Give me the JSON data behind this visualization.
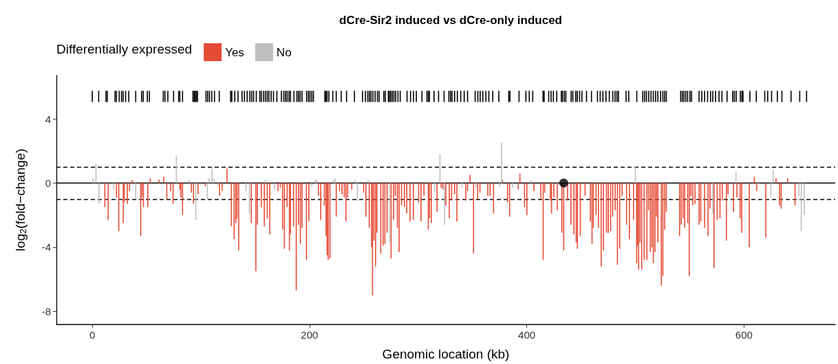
{
  "chart_data": {
    "type": "bar",
    "title": "dCre-Sir2 induced vs dCre-only induced",
    "xlabel": "Genomic location (kb)",
    "ylabel": "log$_{2}$(fold−change)",
    "legend_title": "Differentially expressed",
    "legend": "top left",
    "grid": false,
    "xlim": [
      -33,
      684
    ],
    "xticks": [
      0,
      200,
      400,
      600
    ],
    "ylim": [
      -8.8,
      6.7
    ],
    "yticks": [
      -8,
      -4,
      0,
      4
    ],
    "ref_lines": [
      {
        "axis": "y",
        "value": 0,
        "color": "#000000",
        "line_style": "solid"
      },
      {
        "axis": "y",
        "value": 1,
        "color": "#000000",
        "line_style": "dashed"
      },
      {
        "axis": "y",
        "value": -1,
        "color": "#000000",
        "line_style": "dashed"
      }
    ],
    "series": [
      {
        "name": "Yes",
        "color": "#e64b35",
        "x": [
          11.6,
          14.7,
          22.3,
          24.4,
          28.6,
          29.4,
          32.2,
          34.3,
          36.8,
          44.6,
          45.8,
          47.1,
          51.1,
          53.4,
          61.6,
          65.8,
          68.6,
          72.2,
          74.4,
          80.6,
          81.6,
          83.1,
          91.3,
          93.2,
          97.4,
          104.1,
          117.2,
          119.5,
          124.1,
          128.1,
          130.6,
          132.1,
          133.2,
          134.8,
          146.4,
          150.6,
          152,
          155.6,
          158.4,
          161.1,
          163.4,
          171,
          173.1,
          175.2,
          176.9,
          179.4,
          181.5,
          182.5,
          185.3,
          187.8,
          189.9,
          191.6,
          193.1,
          197.2,
          199.4,
          208.2,
          210.3,
          213.7,
          215.2,
          216.2,
          217.2,
          218.8,
          224.6,
          227.7,
          229.9,
          232,
          233.5,
          235.1,
          238.9,
          249.8,
          251.9,
          255,
          257.2,
          258,
          259.3,
          260.8,
          262,
          265.6,
          267.7,
          269.4,
          271.4,
          275.1,
          277.3,
          279,
          280.9,
          282.5,
          284.7,
          287.4,
          289.5,
          292.5,
          295.6,
          300.5,
          302.6,
          305.4,
          309.4,
          310.4,
          312.1,
          317.4,
          321.2,
          322.7,
          325.5,
          328.7,
          330.8,
          333.6,
          335.7,
          343.8,
          345.5,
          347.8,
          351,
          354.8,
          356.9,
          364.1,
          366.2,
          369.4,
          377.6,
          382.3,
          384.2,
          392.2,
          393.7,
          398,
          400.1,
          406.6,
          412.9,
          415.1,
          416.5,
          421.8,
          422.8,
          424.9,
          428.1,
          432.3,
          434,
          437.5,
          440.7,
          443.4,
          445.5,
          446.6,
          449.3,
          453.7,
          458.6,
          460.1,
          461.3,
          463.8,
          466,
          468.5,
          470.6,
          473.4,
          475.1,
          477.2,
          479.1,
          481.4,
          483.5,
          485.6,
          487.7,
          491.9,
          494.5,
          498.3,
          501.2,
          502,
          503,
          504.3,
          505.8,
          508.1,
          510.6,
          512.1,
          513.8,
          515.2,
          516.5,
          518,
          519.4,
          520.7,
          523.9,
          525.3,
          527,
          528.5,
          540.7,
          542.2,
          543.9,
          545.4,
          548.1,
          549.6,
          551.1,
          552.8,
          554.9,
          558.7,
          560.2,
          563.7,
          566.9,
          568.6,
          572.4,
          575.3,
          577.9,
          580,
          583.8,
          585.3,
          590.3,
          593.5,
          596.4,
          597.9,
          604.8,
          609.5,
          611.6,
          620,
          629.5,
          632.7,
          634.2,
          640.1,
          647
        ],
        "values": [
          -1.5,
          -2.3,
          -0.9,
          -3.0,
          -2.5,
          -1.2,
          -1.3,
          -0.5,
          0.2,
          -3.3,
          -0.9,
          -1.5,
          -1.5,
          0.3,
          0.2,
          0.4,
          -1.0,
          -0.5,
          -1.3,
          -0.4,
          -0.9,
          -2.0,
          -0.6,
          -1.3,
          -0.7,
          -0.2,
          -0.8,
          -0.5,
          0.9,
          -2.7,
          -3.5,
          -2.5,
          -2.2,
          -4.2,
          -2.5,
          -5.5,
          -2.6,
          -1.5,
          -2.7,
          -2.2,
          -3.2,
          -0.5,
          -0.3,
          -2.9,
          -4.1,
          -1.5,
          -4.2,
          -3.2,
          -2.7,
          -6.7,
          -2.6,
          -3.8,
          -2.8,
          -4.8,
          -2.4,
          -0.8,
          -2.3,
          -1.4,
          -3.3,
          -4.5,
          -4.8,
          -4.7,
          -2.1,
          -0.5,
          -0.7,
          -0.9,
          -2.4,
          -0.9,
          -0.4,
          -0.6,
          -2.1,
          -2.8,
          -4.0,
          -7.0,
          -3.6,
          -5.2,
          -3.1,
          -4.4,
          -3.9,
          -3.8,
          -3.1,
          -4.7,
          -2.3,
          -0.8,
          -2.8,
          -4.3,
          -1.4,
          -1.5,
          -1.9,
          -2.4,
          -2.3,
          -1.2,
          -2.4,
          -0.8,
          -2.9,
          -2.2,
          -2.5,
          -1.8,
          -0.3,
          -0.4,
          -1.4,
          -2.2,
          -1.1,
          -0.7,
          -2.4,
          -1.1,
          -0.5,
          0.5,
          -4.4,
          -1.0,
          -0.6,
          -0.8,
          -0.8,
          -1.9,
          0.2,
          -1.2,
          -2.1,
          -0.4,
          0.6,
          -1.5,
          -2.0,
          -0.5,
          -1.0,
          -4.8,
          -0.6,
          -1.1,
          -1.9,
          -0.9,
          -1.7,
          -3.1,
          -4.2,
          -1.1,
          -2.6,
          -3.2,
          -3.7,
          -4.1,
          -3.3,
          -0.8,
          -2.4,
          -3.8,
          -2.8,
          -2.0,
          -2.8,
          -5.2,
          -4.2,
          -3.1,
          -3.1,
          -3.0,
          -2.1,
          -1.7,
          -5.1,
          -4.1,
          -0.8,
          -2.6,
          -3.5,
          -2.3,
          -5.0,
          -3.9,
          -5.4,
          -3.7,
          -5.4,
          -4.8,
          -4.8,
          -1.7,
          -4.3,
          -4.0,
          -5.0,
          -4.3,
          -2.1,
          -3.7,
          -6.4,
          -5.8,
          -2.9,
          -1.8,
          -3.3,
          -2.6,
          -2.2,
          -2.8,
          -2.5,
          -5.8,
          -0.8,
          -1.4,
          -1.3,
          -2.6,
          -2.4,
          -2.8,
          -3.3,
          -1.6,
          -5.3,
          -2.3,
          -2.2,
          -1.1,
          -3.6,
          -0.7,
          -1.8,
          -0.9,
          -2.2,
          -3.1,
          -4.0,
          0.4,
          -0.5,
          -3.4,
          0.3,
          -1.4,
          -1.6,
          0.3,
          -1.4
        ]
      },
      {
        "name": "No",
        "color": "#bebebe",
        "x": [
          0.6,
          3.4,
          6.3,
          19.6,
          40,
          77.4,
          89.4,
          95.3,
          106,
          107.5,
          110.2,
          112.1,
          115.9,
          141.5,
          144.7,
          159.4,
          167.8,
          202.1,
          205.3,
          206.7,
          222,
          223.5,
          242.1,
          244.1,
          254,
          274.1,
          315.3,
          320.1,
          324.3,
          340.3,
          353.1,
          374.9,
          376.8,
          386.9,
          403.8,
          500,
          571.1,
          592.6,
          613.3,
          624.7,
          626.8,
          650.6,
          652.7,
          655.4
        ],
        "values": [
          0.3,
          1.2,
          -1.3,
          -0.4,
          -1.0,
          1.7,
          0.2,
          -2.3,
          -1.0,
          0.3,
          0.9,
          0.3,
          -0.2,
          -0.5,
          -1.9,
          0.2,
          -0.4,
          -0.2,
          0.2,
          0.2,
          0.2,
          0.3,
          0.2,
          -1.1,
          0.2,
          -3.7,
          -0.6,
          1.8,
          -2.6,
          -0.3,
          -0.3,
          -0.2,
          2.5,
          -0.3,
          0.2,
          1.0,
          -1.9,
          0.7,
          0.1,
          -0.9,
          0.8,
          -0.8,
          -3.0,
          -2.0
        ]
      },
      {
        "color": "#000000",
        "x": [
          0,
          5.9,
          12.6,
          13.9,
          21,
          22.3,
          24.8,
          26.9,
          28.4,
          30.7,
          33.6,
          40,
          45.4,
          46.9,
          50.7,
          52.6,
          65.4,
          66.9,
          69.6,
          74.9,
          79.5,
          80.6,
          83.1,
          92.7,
          93.8,
          94.8,
          95.9,
          96.9,
          104.7,
          106.2,
          107.9,
          110,
          112.5,
          116.9,
          127.4,
          128.5,
          131.2,
          134.2,
          137.9,
          140.1,
          142.6,
          145.1,
          146.8,
          148.5,
          151,
          154.2,
          155.6,
          157.7,
          159.4,
          161.1,
          162.6,
          164.7,
          166.8,
          170,
          174.1,
          176.3,
          177.9,
          179.4,
          181.1,
          182.5,
          185.7,
          188.4,
          189.9,
          191.4,
          193.1,
          197.3,
          199,
          200.4,
          202.1,
          203.6,
          214.1,
          215.1,
          216.2,
          217.8,
          221.4,
          224.6,
          229.2,
          234.1,
          241.4,
          248.8,
          251.5,
          253.6,
          255.1,
          256.6,
          258.3,
          260.4,
          262.5,
          264.1,
          268.4,
          269.8,
          272.6,
          273.4,
          274.7,
          276.2,
          277.7,
          279.3,
          281.4,
          283.5,
          289.8,
          293,
          295.7,
          298.3,
          303.5,
          308.1,
          309.4,
          310.4,
          314.6,
          318.8,
          323.9,
          328.3,
          329.8,
          331.2,
          333.6,
          336.1,
          339.2,
          342.4,
          345.5,
          352.5,
          355,
          357.1,
          359.6,
          362.4,
          365.1,
          368.7,
          374.3,
          383.4,
          384.5,
          392.9,
          399.2,
          402.3,
          405.5,
          415,
          416,
          420.2,
          422.4,
          424.5,
          427.6,
          431.8,
          432.9,
          434.6,
          436,
          440.9,
          442.4,
          445.1,
          446.6,
          448.7,
          450.8,
          455,
          459.6,
          465.1,
          467.6,
          470.1,
          472.9,
          476,
          479.2,
          481.3,
          483,
          484.4,
          491.4,
          493.9,
          501.3,
          506.8,
          508.5,
          510.2,
          512.3,
          514.4,
          516.5,
          518.6,
          520.7,
          523.2,
          525.3,
          527,
          528.5,
          541.7,
          543.2,
          544.7,
          546.4,
          548.1,
          550.2,
          551.7,
          558.6,
          561.2,
          563.7,
          566.5,
          569.2,
          571.3,
          573.8,
          577,
          579.7,
          584.4,
          589.6,
          591.1,
          592.8,
          596.6,
          598.1,
          599.1,
          605.4,
          611.3,
          619.1,
          621.8,
          625.4,
          630.7,
          634.9,
          643.3,
          651.3,
          657.6
        ],
        "base": [
          5.05,
          5.05,
          5.05,
          5.05,
          5.05,
          5.05,
          5.05,
          5.05,
          5.05,
          5.05,
          5.05,
          5.05,
          5.05,
          5.05,
          5.05,
          5.05,
          5.05,
          5.05,
          5.05,
          5.05,
          5.05,
          5.05,
          5.05,
          5.05,
          5.05,
          5.05,
          5.05,
          5.05,
          5.05,
          5.05,
          5.05,
          5.05,
          5.05,
          5.05,
          5.05,
          5.05,
          5.05,
          5.05,
          5.05,
          5.05,
          5.05,
          5.05,
          5.05,
          5.05,
          5.05,
          5.05,
          5.05,
          5.05,
          5.05,
          5.05,
          5.05,
          5.05,
          5.05,
          5.05,
          5.05,
          5.05,
          5.05,
          5.05,
          5.05,
          5.05,
          5.05,
          5.05,
          5.05,
          5.05,
          5.05,
          5.05,
          5.05,
          5.05,
          5.05,
          5.05,
          5.05,
          5.05,
          5.05,
          5.05,
          5.05,
          5.05,
          5.05,
          5.05,
          5.05,
          5.05,
          5.05,
          5.05,
          5.05,
          5.05,
          5.05,
          5.05,
          5.05,
          5.05,
          5.05,
          5.05,
          5.05,
          5.05,
          5.05,
          5.05,
          5.05,
          5.05,
          5.05,
          5.05,
          5.05,
          5.05,
          5.05,
          5.05,
          5.05,
          5.05,
          5.05,
          5.05,
          5.05,
          5.05,
          5.05,
          5.05,
          5.05,
          5.05,
          5.05,
          5.05,
          5.05,
          5.05,
          5.05,
          5.05,
          5.05,
          5.05,
          5.05,
          5.05,
          5.05,
          5.05,
          5.05,
          5.05,
          5.05,
          5.05,
          5.05,
          5.05,
          5.05,
          5.05,
          5.05,
          5.05,
          5.05,
          5.05,
          5.05,
          5.05,
          5.05,
          5.05,
          5.05,
          5.05,
          5.05,
          5.05,
          5.05,
          5.05,
          5.05,
          5.05,
          5.05,
          5.05,
          5.05,
          5.05,
          5.05,
          5.05,
          5.05,
          5.05,
          5.05,
          5.05,
          5.05,
          5.05,
          5.05,
          5.05,
          5.05,
          5.05,
          5.05,
          5.05,
          5.05,
          5.05,
          5.05,
          5.05,
          5.05,
          5.05,
          5.05,
          5.05,
          5.05,
          5.05,
          5.05,
          5.05,
          5.05,
          5.05,
          5.05,
          5.05,
          5.05,
          5.05,
          5.05,
          5.05,
          5.05,
          5.05,
          5.05,
          5.05,
          5.05,
          5.05,
          5.05,
          5.05,
          5.05,
          5.05,
          5.05,
          5.05,
          5.05,
          5.05,
          5.05,
          5.05,
          5.05,
          5.05,
          5.05,
          5.05
        ],
        "values": [
          0.7,
          0.7,
          0.7,
          0.7,
          0.7,
          0.7,
          0.7,
          0.7,
          0.7,
          0.7,
          0.7,
          0.7,
          0.7,
          0.7,
          0.7,
          0.7,
          0.7,
          0.7,
          0.7,
          0.7,
          0.7,
          0.7,
          0.7,
          0.7,
          0.7,
          0.7,
          0.7,
          0.7,
          0.7,
          0.7,
          0.7,
          0.7,
          0.7,
          0.7,
          0.7,
          0.7,
          0.7,
          0.7,
          0.7,
          0.7,
          0.7,
          0.7,
          0.7,
          0.7,
          0.7,
          0.7,
          0.7,
          0.7,
          0.7,
          0.7,
          0.7,
          0.7,
          0.7,
          0.7,
          0.7,
          0.7,
          0.7,
          0.7,
          0.7,
          0.7,
          0.7,
          0.7,
          0.7,
          0.7,
          0.7,
          0.7,
          0.7,
          0.7,
          0.7,
          0.7,
          0.7,
          0.7,
          0.7,
          0.7,
          0.7,
          0.7,
          0.7,
          0.7,
          0.7,
          0.7,
          0.7,
          0.7,
          0.7,
          0.7,
          0.7,
          0.7,
          0.7,
          0.7,
          0.7,
          0.7,
          0.7,
          0.7,
          0.7,
          0.7,
          0.7,
          0.7,
          0.7,
          0.7,
          0.7,
          0.7,
          0.7,
          0.7,
          0.7,
          0.7,
          0.7,
          0.7,
          0.7,
          0.7,
          0.7,
          0.7,
          0.7,
          0.7,
          0.7,
          0.7,
          0.7,
          0.7,
          0.7,
          0.7,
          0.7,
          0.7,
          0.7,
          0.7,
          0.7,
          0.7,
          0.7,
          0.7,
          0.7,
          0.7,
          0.7,
          0.7,
          0.7,
          0.7,
          0.7,
          0.7,
          0.7,
          0.7,
          0.7,
          0.7,
          0.7,
          0.7,
          0.7,
          0.7,
          0.7,
          0.7,
          0.7,
          0.7,
          0.7,
          0.7,
          0.7,
          0.7,
          0.7,
          0.7,
          0.7,
          0.7,
          0.7,
          0.7,
          0.7,
          0.7,
          0.7,
          0.7,
          0.7,
          0.7,
          0.7,
          0.7,
          0.7,
          0.7,
          0.7,
          0.7,
          0.7,
          0.7,
          0.7,
          0.7,
          0.7,
          0.7,
          0.7,
          0.7,
          0.7,
          0.7,
          0.7,
          0.7,
          0.7,
          0.7,
          0.7,
          0.7,
          0.7,
          0.7,
          0.7,
          0.7,
          0.7,
          0.7,
          0.7,
          0.7,
          0.7,
          0.7,
          0.7,
          0.7,
          0.7,
          0.7,
          0.7,
          0.7,
          0.7,
          0.7,
          0.7,
          0.7,
          0.7,
          0.7
        ]
      },
      {
        "type": "scatter",
        "color": "#000000",
        "marker": "circle",
        "x": [
          434
        ],
        "values": [
          0
        ]
      }
    ]
  }
}
